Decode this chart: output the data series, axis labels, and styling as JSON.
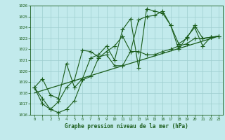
{
  "xlabel": "Graphe pression niveau de la mer (hPa)",
  "xlim": [
    -0.5,
    23.5
  ],
  "ylim": [
    1016,
    1026
  ],
  "yticks": [
    1016,
    1017,
    1018,
    1019,
    1020,
    1021,
    1022,
    1023,
    1024,
    1025,
    1026
  ],
  "xticks": [
    0,
    1,
    2,
    3,
    4,
    5,
    6,
    7,
    8,
    9,
    10,
    11,
    12,
    13,
    14,
    15,
    16,
    17,
    18,
    19,
    20,
    21,
    22,
    23
  ],
  "background_color": "#c2eaec",
  "grid_color": "#9ecece",
  "line_color": "#1a5c1a",
  "series": [
    {
      "x": [
        0,
        1,
        2,
        3,
        4,
        5,
        6,
        7,
        8,
        9,
        10,
        11,
        12,
        13,
        14,
        15,
        16,
        17,
        18,
        19,
        20,
        21,
        22,
        23
      ],
      "y": [
        1018.5,
        1019.3,
        1017.8,
        1017.5,
        1020.7,
        1018.5,
        1019.3,
        1021.2,
        1021.5,
        1022.3,
        1021.0,
        1023.8,
        1024.8,
        1020.3,
        1025.7,
        1025.5,
        1025.3,
        1024.2,
        1022.5,
        1023.0,
        1024.2,
        1023.0,
        1023.1,
        1023.2
      ],
      "marker": "+",
      "markersize": 4,
      "linewidth": 0.8
    },
    {
      "x": [
        0,
        23
      ],
      "y": [
        1018.0,
        1023.2
      ],
      "marker": null,
      "markersize": 0,
      "linewidth": 0.9
    },
    {
      "x": [
        0,
        1,
        2,
        3,
        4,
        5,
        6,
        7,
        8,
        9,
        10,
        11,
        12,
        13,
        14,
        15,
        16,
        17,
        18,
        19,
        20,
        21,
        22,
        23
      ],
      "y": [
        1018.5,
        1017.5,
        1016.5,
        1017.2,
        1018.5,
        1019.2,
        1021.9,
        1021.8,
        1021.3,
        1021.5,
        1020.5,
        1020.5,
        1021.8,
        1021.8,
        1021.5,
        1021.5,
        1021.8,
        1022.0,
        1022.3,
        1022.5,
        1023.0,
        1023.0,
        1023.1,
        1023.2
      ],
      "marker": "+",
      "markersize": 4,
      "linewidth": 0.8
    },
    {
      "x": [
        0,
        1,
        2,
        3,
        4,
        5,
        6,
        7,
        8,
        9,
        10,
        11,
        12,
        13,
        14,
        15,
        16,
        17,
        18,
        19,
        20,
        21,
        22,
        23
      ],
      "y": [
        1018.5,
        1017.0,
        1016.5,
        1016.2,
        1016.5,
        1017.3,
        1019.2,
        1019.5,
        1021.2,
        1021.8,
        1022.3,
        1023.2,
        1021.8,
        1024.7,
        1025.0,
        1025.1,
        1025.5,
        1024.2,
        1022.0,
        1023.1,
        1024.0,
        1022.3,
        1023.1,
        1023.2
      ],
      "marker": "+",
      "markersize": 4,
      "linewidth": 0.8
    }
  ]
}
